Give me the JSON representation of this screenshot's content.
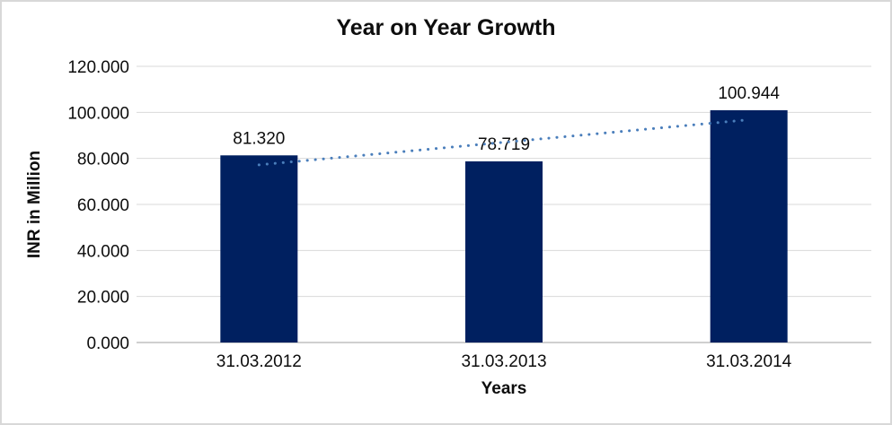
{
  "chart_data": {
    "type": "bar",
    "title": "Year on Year Growth",
    "xlabel": "Years",
    "ylabel": "INR in Million",
    "categories": [
      "31.03.2012",
      "31.03.2013",
      "31.03.2014"
    ],
    "values": [
      81.32,
      78.719,
      100.944
    ],
    "data_labels": [
      "81.320",
      "78.719",
      "100.944"
    ],
    "ylim": [
      0,
      120
    ],
    "yticks": [
      0,
      20,
      40,
      60,
      80,
      100,
      120
    ],
    "ytick_labels": [
      "0.000",
      "20.000",
      "40.000",
      "60.000",
      "80.000",
      "100.000",
      "120.000"
    ],
    "grid": true,
    "legend_position": "none",
    "bar_color": "#002060",
    "trendline": {
      "type": "linear",
      "style": "dotted",
      "color": "#4A7EBB",
      "start_value": 77.2,
      "end_value": 96.8
    }
  },
  "colors": {
    "bar": "#002060",
    "trendline": "#4A7EBB",
    "gridline": "#D9D9D9",
    "axis_line": "#BFBFBF",
    "border": "#D8D8D8",
    "text": "#0D0D0D",
    "background": "#FFFFFF"
  }
}
